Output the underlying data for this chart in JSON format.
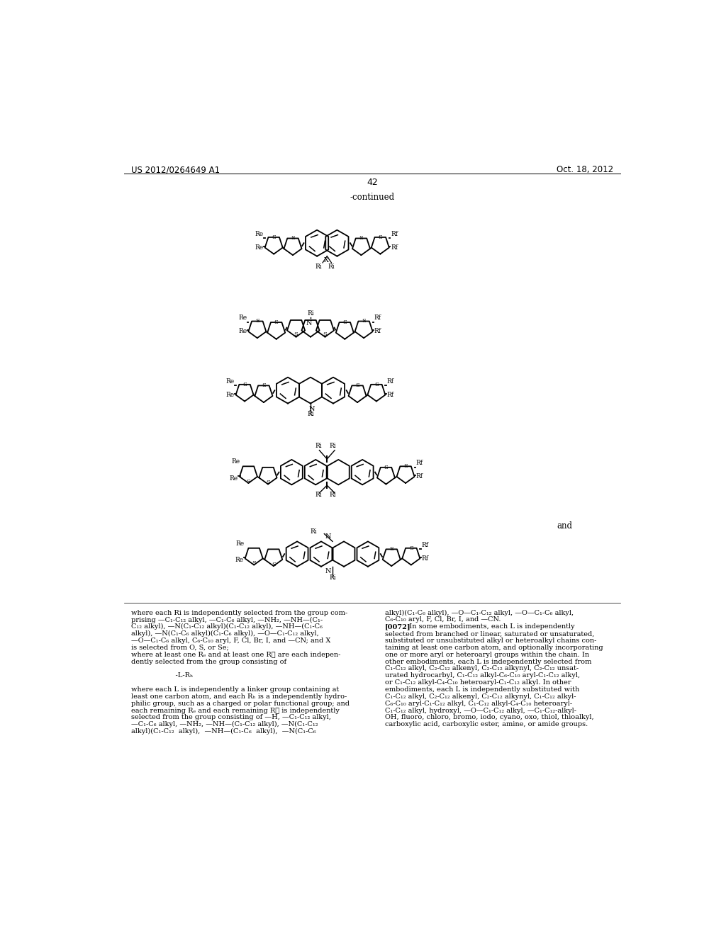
{
  "page_header_left": "US 2012/0264649 A1",
  "page_header_right": "Oct. 18, 2012",
  "page_number": "42",
  "continued_label": "-continued",
  "background_color": "#ffffff",
  "left_column_text": [
    "where each Ri is independently selected from the group com-",
    "prising —C₁-C₁₂ alkyl, —C₁-C₆ alkyl, —NH₂, —NH—(C₁-",
    "C₁₂ alkyl), —N(C₁-C₁₂ alkyl)(C₁-C₁₂ alkyl), —NH—(C₁-C₆",
    "alkyl), —N(C₁-C₆ alkyl)(C₁-C₆ alkyl), —O—C₁-C₁₂ alkyl,",
    "—O—C₁-C₆ alkyl, C₆-C₁₀ aryl, F, Cl, Br, I, and —CN; and X",
    "is selected from O, S, or Se;",
    "where at least one Rₑ and at least one R⁦ are each indepen-",
    "dently selected from the group consisting of",
    "",
    "                    -L-Rₕ",
    "",
    "where each L is independently a linker group containing at",
    "least one carbon atom, and each Rₕ is a independently hydro-",
    "philic group, such as a charged or polar functional group; and",
    "each remaining Rₑ and each remaining R⁦ is independently",
    "selected from the group consisting of —H, —C₁-C₁₂ alkyl,",
    "—C₁-C₆ alkyl, —NH₂, —NH—(C₁-C₁₂ alkyl), —N(C₁-C₁₂",
    "alkyl)(C₁-C₁₂  alkyl),  —NH—(C₁-C₆  alkyl),  —N(C₁-C₆"
  ],
  "right_column_text": [
    "alkyl)(C₁-C₆ alkyl), —O—C₁-C₁₂ alkyl, —O—C₁-C₆ alkyl,",
    "C₆-C₁₀ aryl, F, Cl, Br, I, and —CN.",
    "[0072]  In some embodiments, each L is independently",
    "selected from branched or linear, saturated or unsaturated,",
    "substituted or unsubstituted alkyl or heteroalkyl chains con-",
    "taining at least one carbon atom, and optionally incorporating",
    "one or more aryl or heteroaryl groups within the chain. In",
    "other embodiments, each L is independently selected from",
    "C₁-C₁₂ alkyl, C₂-C₁₂ alkenyl, C₂-C₁₂ alkynyl, C₂-C₁₂ unsat-",
    "urated hydrocarbyl, C₁-C₁₂ alkyl-C₆-C₁₀ aryl-C₁-C₁₂ alkyl,",
    "or C₁-C₁₂ alkyl-C₄-C₁₀ heteroaryl-C₁-C₁₂ alkyl. In other",
    "embodiments, each L is independently substituted with",
    "C₁-C₁₂ alkyl, C₂-C₁₂ alkenyl, C₂-C₁₂ alkynyl, C₁-C₁₂ alkyl-",
    "C₆-C₁₀ aryl-C₁-C₁₂ alkyl, C₁-C₁₂ alkyl-C₄-C₁₀ heteroaryl-",
    "C₁-C₁₂ alkyl, hydroxyl, —O—C₁-C₁₂ alkyl, —C₁-C₁₂-alkyl-",
    "OH, fluoro, chloro, bromo, iodo, cyano, oxo, thiol, thioalkyl,",
    "carboxylic acid, carboxylic ester, amine, or amide groups."
  ],
  "and_label": "and"
}
